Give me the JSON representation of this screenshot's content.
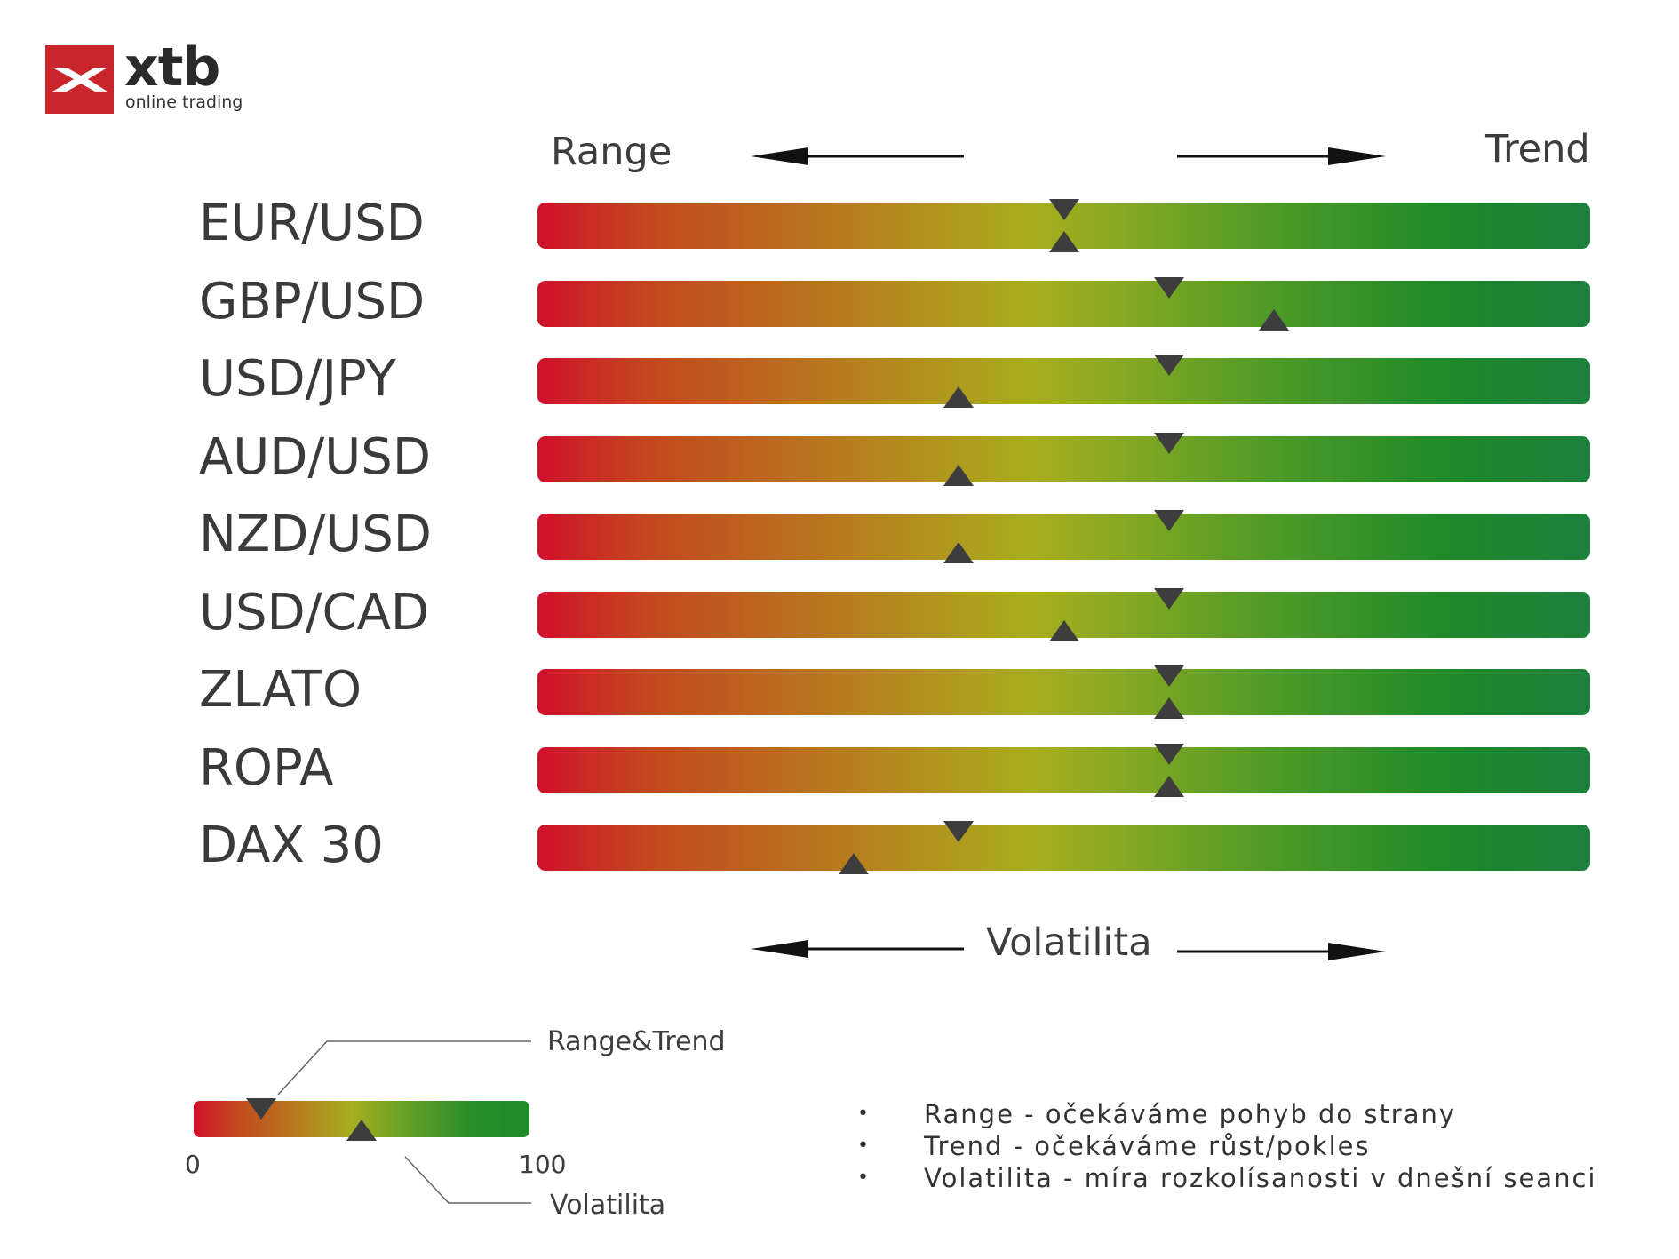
{
  "logo": {
    "wordmark": "xtb",
    "tagline": "online trading",
    "brand_color": "#c8262b"
  },
  "axis_labels": {
    "left": "Range",
    "right": "Trend",
    "volatility": "Volatilita"
  },
  "chart_data": {
    "type": "gauge-bars",
    "scale": [
      0,
      100
    ],
    "legend_markers": {
      "down_triangle": "Range&Trend",
      "up_triangle": "Volatilita"
    },
    "rows": [
      {
        "label": "EUR/USD",
        "range_trend": 50,
        "volatility": 50
      },
      {
        "label": "GBP/USD",
        "range_trend": 60,
        "volatility": 70
      },
      {
        "label": "USD/JPY",
        "range_trend": 60,
        "volatility": 40
      },
      {
        "label": "AUD/USD",
        "range_trend": 60,
        "volatility": 40
      },
      {
        "label": "NZD/USD",
        "range_trend": 60,
        "volatility": 40
      },
      {
        "label": "USD/CAD",
        "range_trend": 60,
        "volatility": 50
      },
      {
        "label": "ZLATO",
        "range_trend": 60,
        "volatility": 60
      },
      {
        "label": "ROPA",
        "range_trend": 60,
        "volatility": 60
      },
      {
        "label": "DAX 30",
        "range_trend": 40,
        "volatility": 30
      }
    ],
    "colors": {
      "low": "#d0102a",
      "mid": "#a8ae1f",
      "high": "#1d7f3c",
      "marker": "#3d3d3d"
    }
  },
  "legend": {
    "range_trend_label": "Range&Trend",
    "volatility_label": "Volatilita",
    "min_label": "0",
    "max_label": "100",
    "example_range_trend": 20,
    "example_volatility": 50
  },
  "notes": [
    "Range - očekáváme pohyb do strany",
    "Trend - očekáváme růst/pokles",
    "Volatilita - míra rozkolísanosti v dnešní seanci"
  ],
  "bullet": "•"
}
